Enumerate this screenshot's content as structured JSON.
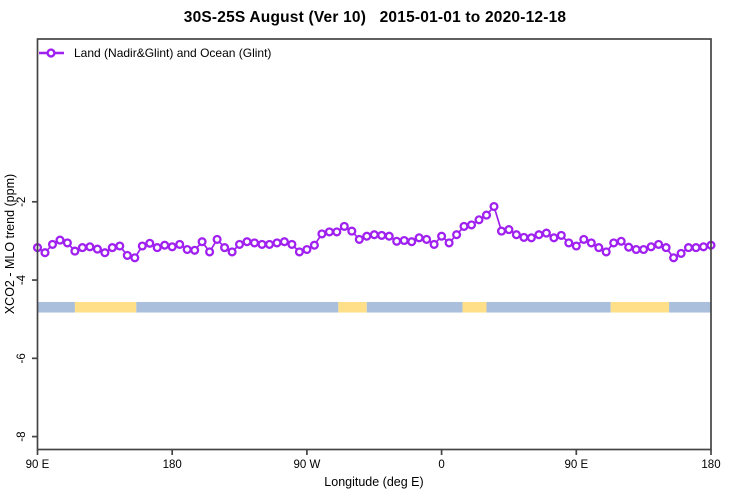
{
  "header": {
    "title": "30S-25S August (Ver 10)   2015-01-01 to 2020-12-18"
  },
  "legend": {
    "label": "Land (Nadir&Glint) and Ocean (Glint)"
  },
  "axes": {
    "xlabel": "Longitude (deg E)",
    "ylabel": "XCO2 - MLO trend (ppm)"
  },
  "colors": {
    "series": "#A020F0",
    "marker_fill": "#FFFFFF",
    "ocean_band": "#A9BFDC",
    "land_band": "#FFDF87",
    "frame": "#454545",
    "text": "#000000",
    "background": "#FFFFFF"
  },
  "chart_data": {
    "type": "line",
    "title": "30S-25S August (Ver 10)   2015-01-01 to 2020-12-18",
    "xlabel": "Longitude (deg E)",
    "ylabel": "XCO2 - MLO trend (ppm)",
    "xlim": [
      90,
      540
    ],
    "ylim": [
      -8.33,
      2.16
    ],
    "grid": false,
    "legend_position": "top-left",
    "x_ticks": [
      {
        "value": 90,
        "label": "90 E"
      },
      {
        "value": 180,
        "label": "180"
      },
      {
        "value": 270,
        "label": "90 W"
      },
      {
        "value": 360,
        "label": "0"
      },
      {
        "value": 450,
        "label": "90 E"
      },
      {
        "value": 540,
        "label": "180"
      }
    ],
    "y_ticks": [
      {
        "value": -2,
        "label": "-2"
      },
      {
        "value": -4,
        "label": "-4"
      },
      {
        "value": -6,
        "label": "-6"
      },
      {
        "value": -8,
        "label": "-8"
      }
    ],
    "series": [
      {
        "name": "Land (Nadir&Glint) and Ocean (Glint)",
        "color": "#A020F0",
        "marker": "open-circle",
        "x": [
          90,
          95,
          100,
          105,
          110,
          115,
          120,
          125,
          130,
          135,
          140,
          145,
          150,
          155,
          160,
          165,
          170,
          175,
          180,
          185,
          190,
          195,
          200,
          205,
          210,
          215,
          220,
          225,
          230,
          235,
          240,
          245,
          250,
          255,
          260,
          265,
          270,
          275,
          280,
          285,
          290,
          295,
          300,
          305,
          310,
          315,
          320,
          325,
          330,
          335,
          340,
          345,
          350,
          355,
          360,
          365,
          370,
          375,
          380,
          385,
          390,
          395,
          400,
          405,
          410,
          415,
          420,
          425,
          430,
          435,
          440,
          445,
          450,
          455,
          460,
          465,
          470,
          475,
          480,
          485,
          490,
          495,
          500,
          505,
          510,
          515,
          520,
          525,
          530,
          535,
          540
        ],
        "y": [
          -3.17,
          -3.3,
          -3.09,
          -2.98,
          -3.05,
          -3.26,
          -3.17,
          -3.15,
          -3.21,
          -3.3,
          -3.17,
          -3.13,
          -3.37,
          -3.43,
          -3.13,
          -3.06,
          -3.17,
          -3.11,
          -3.15,
          -3.09,
          -3.22,
          -3.24,
          -3.02,
          -3.28,
          -2.96,
          -3.17,
          -3.28,
          -3.09,
          -3.02,
          -3.05,
          -3.09,
          -3.09,
          -3.05,
          -3.02,
          -3.09,
          -3.28,
          -3.22,
          -3.11,
          -2.82,
          -2.77,
          -2.77,
          -2.63,
          -2.75,
          -2.96,
          -2.88,
          -2.84,
          -2.86,
          -2.88,
          -3.01,
          -2.99,
          -3.02,
          -2.92,
          -2.96,
          -3.09,
          -2.88,
          -3.05,
          -2.84,
          -2.63,
          -2.59,
          -2.46,
          -2.34,
          -2.12,
          -2.75,
          -2.71,
          -2.84,
          -2.91,
          -2.92,
          -2.84,
          -2.8,
          -2.92,
          -2.86,
          -3.05,
          -3.13,
          -2.96,
          -3.05,
          -3.17,
          -3.28,
          -3.05,
          -3.01,
          -3.16,
          -3.22,
          -3.22,
          -3.15,
          -3.09,
          -3.17,
          -3.43,
          -3.32,
          -3.17,
          -3.17,
          -3.15,
          -3.11
        ]
      }
    ],
    "surface_band": {
      "y_top": -4.56,
      "y_bottom": -4.83,
      "band_colors": {
        "ocean": "#A9BFDC",
        "land": "#FFDF87"
      },
      "segments": [
        {
          "type": "ocean",
          "from": 90,
          "to": 115
        },
        {
          "type": "land",
          "from": 115,
          "to": 156
        },
        {
          "type": "ocean",
          "from": 156,
          "to": 291
        },
        {
          "type": "land",
          "from": 291,
          "to": 310
        },
        {
          "type": "ocean",
          "from": 310,
          "to": 374
        },
        {
          "type": "land",
          "from": 374,
          "to": 390
        },
        {
          "type": "ocean",
          "from": 390,
          "to": 473
        },
        {
          "type": "land",
          "from": 473,
          "to": 512
        },
        {
          "type": "ocean",
          "from": 512,
          "to": 540
        }
      ]
    }
  }
}
